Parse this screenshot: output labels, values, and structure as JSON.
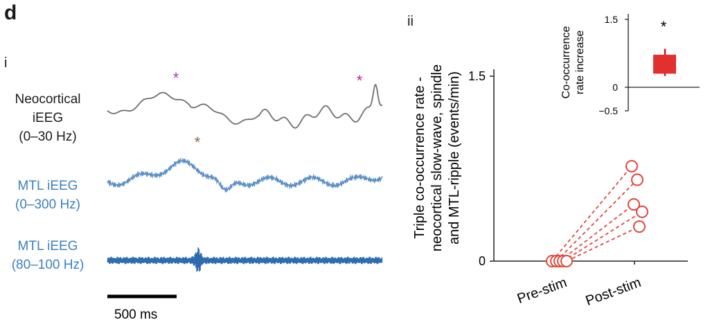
{
  "panel_letter": "d",
  "left_panel": {
    "label": "i",
    "traces": [
      {
        "line1": "Neocortical",
        "line2": "iEEG",
        "line3": "(0–30 Hz)",
        "color": "#6e6e6e"
      },
      {
        "line1": "MTL iEEG",
        "line2": "(0–300 Hz)",
        "color": "#5a8fc4"
      },
      {
        "line1": "MTL iEEG",
        "line2": "(80–100 Hz)",
        "color": "#2d6cb0"
      }
    ],
    "markers": [
      {
        "symbol": "*",
        "color": "#a040a8"
      },
      {
        "symbol": "*",
        "color": "#d01a8a"
      },
      {
        "symbol": "*",
        "color": "#8c6a48"
      }
    ],
    "scale_bar_label": "500 ms"
  },
  "chart_data": [
    {
      "type": "scatter",
      "label": "ii",
      "ylabel": "Triple co-occurrence rate - neocortical slow-wave, spindle and MTL-ripple (events/min)",
      "ylabel_lines": [
        "Triple co-occurrence rate -",
        "neocortical slow-wave, spindle",
        "and MTL-ripple (events/min)"
      ],
      "xlabel": "",
      "categories": [
        "Pre-stim",
        "Post-stim"
      ],
      "yticks": [
        "0",
        "1.5"
      ],
      "ylim": [
        0,
        1.5
      ],
      "color": "#e0463c",
      "pairs": [
        {
          "pre": 0,
          "post": 0.77
        },
        {
          "pre": 0,
          "post": 0.66
        },
        {
          "pre": 0,
          "post": 0.46
        },
        {
          "pre": 0,
          "post": 0.4
        },
        {
          "pre": 0,
          "post": 0.28
        }
      ]
    },
    {
      "type": "box",
      "ylabel_lines": [
        "Co-occurrence",
        "rate increase"
      ],
      "yticks": [
        "1.5",
        "0",
        "−0.5"
      ],
      "ylim": [
        -0.5,
        1.5
      ],
      "box": {
        "q1": 0.3,
        "median": 0.55,
        "q3": 0.72,
        "min": 0.25,
        "max": 0.85
      },
      "significance": "*",
      "color": "#e03030"
    }
  ]
}
